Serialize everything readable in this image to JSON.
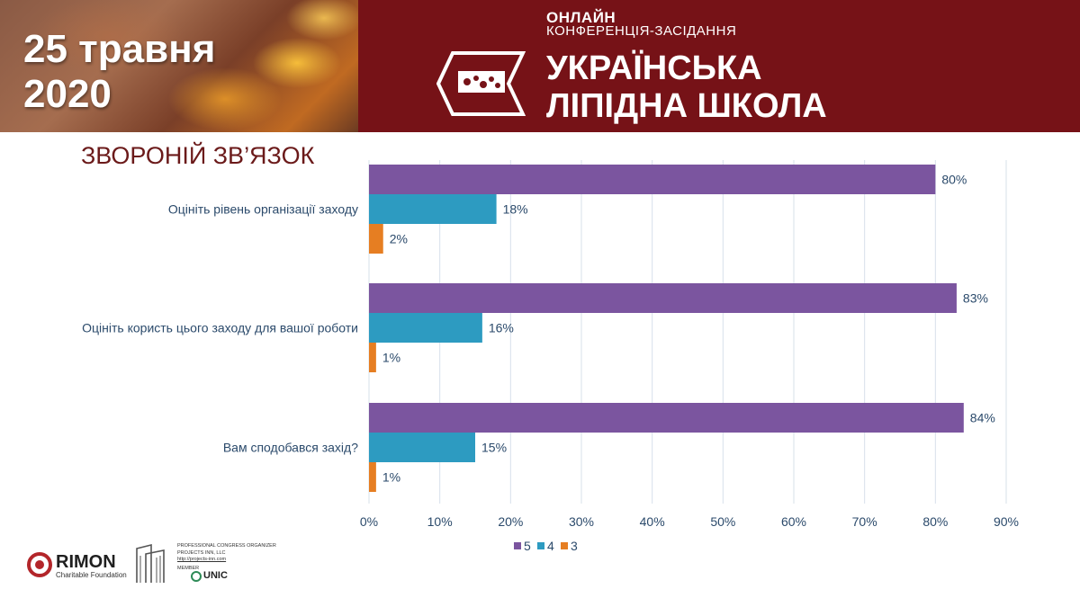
{
  "header": {
    "date_line1": "25 травня",
    "date_line2": "2020",
    "online": "ОНЛАЙН",
    "conference": "КОНФЕРЕНЦІЯ-ЗАСІДАННЯ",
    "school_line1": "УКРАЇНСЬКА",
    "school_line2": "ЛІПІДНА ШКОЛА"
  },
  "section_title": "ЗВОРОНІЙ ЗВ’ЯЗОК",
  "chart_data": {
    "type": "bar",
    "orientation": "horizontal",
    "categories": [
      "Оцініть рівень організації заходу",
      "Оцініть користь цього заходу для вашої роботи",
      "Вам сподобався захід?"
    ],
    "series": [
      {
        "name": "5",
        "values": [
          80,
          83,
          84
        ],
        "color": "#7b559f"
      },
      {
        "name": "4",
        "values": [
          18,
          16,
          15
        ],
        "color": "#2d9bc1"
      },
      {
        "name": "3",
        "values": [
          2,
          1,
          1
        ],
        "color": "#e67e22"
      }
    ],
    "xlim": [
      0,
      90
    ],
    "x_ticks": [
      "0%",
      "10%",
      "20%",
      "30%",
      "40%",
      "50%",
      "60%",
      "70%",
      "80%",
      "90%"
    ],
    "grid": true,
    "legend": "bottom"
  },
  "footer": {
    "rimon": "RIMON",
    "rimon_sub": "Charitable Foundation",
    "pco_line1": "PROFESSIONAL CONGRESS ORGANIZER",
    "pco_line2": "PROJECTS INN, LLC",
    "pco_line3": "http://projects-inn.com",
    "member": "MEMBER",
    "unic": "UNIC"
  }
}
